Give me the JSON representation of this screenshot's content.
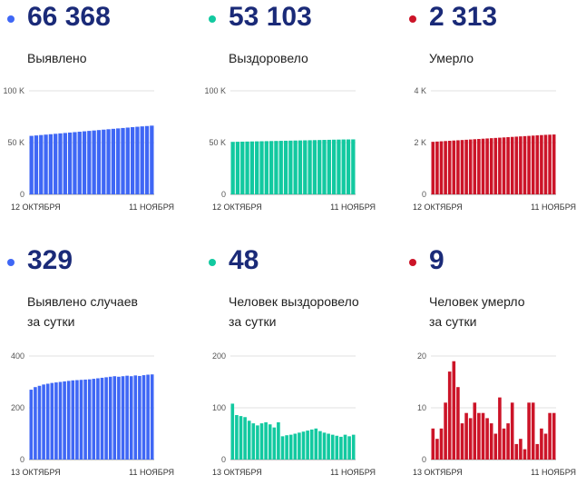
{
  "panels": [
    {
      "value": "66 368",
      "label_lines": [
        "Выявлено"
      ],
      "color": "#3f67f5",
      "chart_data": {
        "type": "bar",
        "title": "",
        "x_start_label": "12 ОКТЯБРЯ",
        "x_end_label": "11 НОЯБРЯ",
        "y_ticks": [
          {
            "v": 0,
            "t": "0"
          },
          {
            "v": 50000,
            "t": "50 K"
          },
          {
            "v": 100000,
            "t": "100 K"
          }
        ],
        "ylim": [
          0,
          100000
        ],
        "values": [
          56500,
          56900,
          57300,
          57700,
          58100,
          58500,
          58900,
          59300,
          59700,
          60100,
          60500,
          60900,
          61300,
          61700,
          62100,
          62500,
          62900,
          63300,
          63700,
          64100,
          64500,
          64900,
          65300,
          65650,
          66000,
          66368
        ]
      }
    },
    {
      "value": "53 103",
      "label_lines": [
        "Выздоровело"
      ],
      "color": "#12c9a0",
      "chart_data": {
        "type": "bar",
        "title": "",
        "x_start_label": "12 ОКТЯБРЯ",
        "x_end_label": "11 НОЯБРЯ",
        "y_ticks": [
          {
            "v": 0,
            "t": "0"
          },
          {
            "v": 50000,
            "t": "50 K"
          },
          {
            "v": 100000,
            "t": "100 K"
          }
        ],
        "ylim": [
          0,
          100000
        ],
        "values": [
          50700,
          50800,
          50900,
          51000,
          51100,
          51200,
          51300,
          51400,
          51500,
          51600,
          51700,
          51800,
          51900,
          52000,
          52100,
          52200,
          52300,
          52400,
          52500,
          52600,
          52700,
          52800,
          52900,
          53000,
          53050,
          53103
        ]
      }
    },
    {
      "value": "2 313",
      "label_lines": [
        "Умерло"
      ],
      "color": "#cc1428",
      "chart_data": {
        "type": "bar",
        "title": "",
        "x_start_label": "12 ОКТЯБРЯ",
        "x_end_label": "11 НОЯБРЯ",
        "y_ticks": [
          {
            "v": 0,
            "t": "0"
          },
          {
            "v": 2000,
            "t": "2 K"
          },
          {
            "v": 4000,
            "t": "4 K"
          }
        ],
        "ylim": [
          0,
          4000
        ],
        "values": [
          2030,
          2040,
          2050,
          2060,
          2070,
          2080,
          2090,
          2100,
          2110,
          2120,
          2130,
          2140,
          2150,
          2160,
          2170,
          2180,
          2190,
          2200,
          2210,
          2220,
          2230,
          2240,
          2250,
          2260,
          2270,
          2280,
          2290,
          2300,
          2306,
          2313
        ]
      }
    },
    {
      "value": "329",
      "label_lines": [
        "Выявлено случаев",
        "за сутки"
      ],
      "color": "#3f67f5",
      "chart_data": {
        "type": "bar",
        "title": "",
        "x_start_label": "13 ОКТЯБРЯ",
        "x_end_label": "11 НОЯБРЯ",
        "y_ticks": [
          {
            "v": 0,
            "t": "0"
          },
          {
            "v": 200,
            "t": "200"
          },
          {
            "v": 400,
            "t": "400"
          }
        ],
        "ylim": [
          0,
          400
        ],
        "values": [
          270,
          280,
          285,
          290,
          293,
          296,
          298,
          300,
          302,
          304,
          306,
          307,
          308,
          309,
          310,
          312,
          314,
          316,
          318,
          320,
          322,
          320,
          322,
          324,
          322,
          325,
          323,
          326,
          328,
          329
        ]
      }
    },
    {
      "value": "48",
      "label_lines": [
        "Человек выздоровело",
        "за сутки"
      ],
      "color": "#12c9a0",
      "chart_data": {
        "type": "bar",
        "title": "",
        "x_start_label": "13 ОКТЯБРЯ",
        "x_end_label": "11 НОЯБРЯ",
        "y_ticks": [
          {
            "v": 0,
            "t": "0"
          },
          {
            "v": 100,
            "t": "100"
          },
          {
            "v": 200,
            "t": "200"
          }
        ],
        "ylim": [
          0,
          200
        ],
        "values": [
          108,
          86,
          84,
          82,
          75,
          70,
          66,
          70,
          72,
          68,
          62,
          72,
          45,
          47,
          48,
          50,
          52,
          54,
          56,
          58,
          60,
          55,
          52,
          50,
          48,
          46,
          44,
          48,
          45,
          48
        ]
      }
    },
    {
      "value": "9",
      "label_lines": [
        "Человек умерло",
        "за сутки"
      ],
      "color": "#cc1428",
      "chart_data": {
        "type": "bar",
        "title": "",
        "x_start_label": "13 ОКТЯБРЯ",
        "x_end_label": "11 НОЯБРЯ",
        "y_ticks": [
          {
            "v": 0,
            "t": "0"
          },
          {
            "v": 10,
            "t": "10"
          },
          {
            "v": 20,
            "t": "20"
          }
        ],
        "ylim": [
          0,
          20
        ],
        "values": [
          6,
          4,
          6,
          11,
          17,
          19,
          14,
          7,
          9,
          8,
          11,
          9,
          9,
          8,
          7,
          5,
          12,
          6,
          7,
          11,
          3,
          4,
          2,
          11,
          11,
          3,
          6,
          5,
          9,
          9
        ]
      }
    }
  ]
}
